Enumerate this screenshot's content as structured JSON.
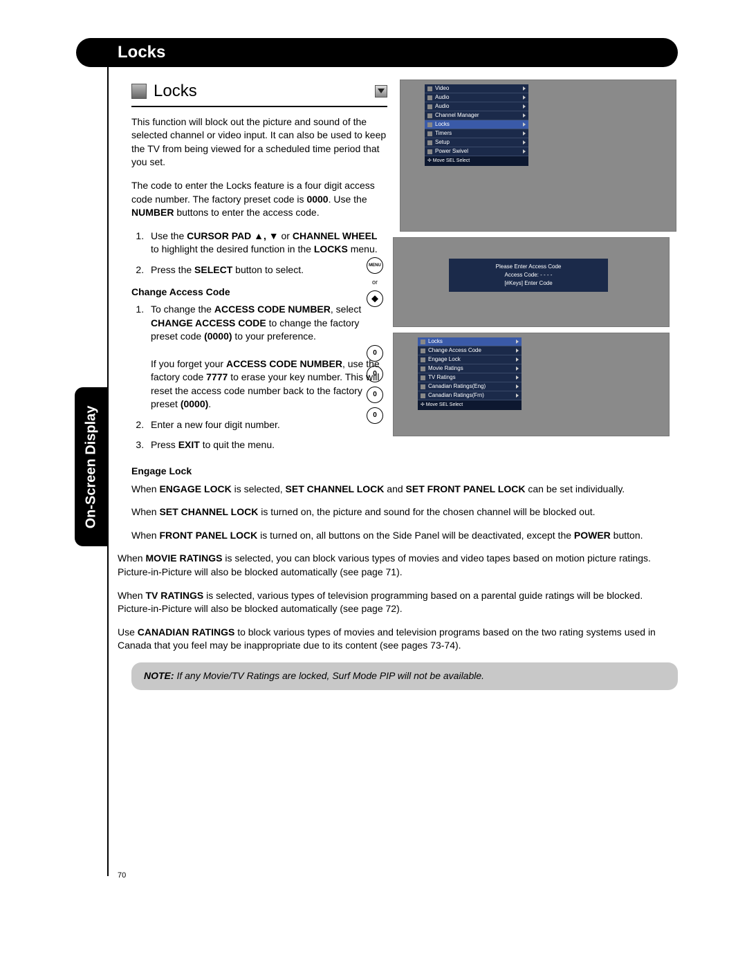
{
  "header": {
    "title": "Locks"
  },
  "sideTab": "On-Screen Display",
  "subheader": "Locks",
  "intro1": "This function will block out the picture and sound of the selected channel or video input. It can also be used to keep the TV from being viewed for a scheduled time period that you set.",
  "intro2a": "The code to enter the Locks feature is a four digit access code number. The factory preset code is ",
  "intro2b": "0000",
  "intro2c": ". Use the ",
  "intro2d": "NUMBER",
  "intro2e": " buttons to enter the access code.",
  "step1a": "Use the ",
  "step1b": "CURSOR PAD ▲, ▼",
  "step1c": " or ",
  "step1d": "CHANNEL WHEEL",
  "step1e": " to highlight the desired function in the ",
  "step1f": "LOCKS",
  "step1g": " menu.",
  "step2a": "Press the ",
  "step2b": "SELECT",
  "step2c": " button to select.",
  "changeHead": "Change Access Code",
  "c1a": "To change the ",
  "c1b": "ACCESS CODE NUMBER",
  "c1c": ", select ",
  "c1d": "CHANGE ACCESS CODE",
  "c1e": " to change the factory preset code ",
  "c1f": "(0000)",
  "c1g": " to your preference.",
  "c1p2a": "If you forget your ",
  "c1p2b": "ACCESS CODE NUMBER",
  "c1p2c": ", use the factory code ",
  "c1p2d": "7777",
  "c1p2e": " to erase your key number. This will reset the access code number back to the factory preset ",
  "c1p2f": "(0000)",
  "c1p2g": ".",
  "c2": "Enter a new four digit number.",
  "c3a": "Press ",
  "c3b": "EXIT",
  "c3c": " to quit the menu.",
  "engageHead": "Engage Lock",
  "e1a": "When ",
  "e1b": "ENGAGE LOCK",
  "e1c": " is selected, ",
  "e1d": "SET CHANNEL LOCK",
  "e1e": " and ",
  "e1f": "SET FRONT PANEL LOCK",
  "e1g": " can be set individually.",
  "e2a": "When ",
  "e2b": "SET CHANNEL LOCK",
  "e2c": " is turned on, the picture and sound for the chosen channel will be blocked out.",
  "e3a": "When ",
  "e3b": "FRONT PANEL LOCK",
  "e3c": " is turned on, all buttons on the Side Panel will be deactivated, except the ",
  "e3d": "POWER",
  "e3e": " button.",
  "f1a": "When ",
  "f1b": "MOVIE RATINGS",
  "f1c": " is selected, you can block various types of movies and video tapes based on motion picture ratings. Picture-in-Picture will also be blocked automatically (see page 71).",
  "f2a": "When ",
  "f2b": "TV RATINGS",
  "f2c": " is selected, various types of television programming based on a parental guide ratings will be blocked. Picture-in-Picture will also be blocked automatically (see page 72).",
  "f3a": "Use ",
  "f3b": "CANADIAN RATINGS",
  "f3c": " to block various types of movies and television programs based on the two rating systems used in Canada that you feel may be inappropriate due to its content (see pages 73-74).",
  "noteLabel": "NOTE:",
  "noteText": "  If any Movie/TV Ratings are locked, Surf Mode PIP will not be available.",
  "pageNum": "70",
  "menu1": [
    "Video",
    "Audio",
    "Audio",
    "Channel Manager",
    "Locks",
    "Timers",
    "Setup",
    "Power Swivel"
  ],
  "menu1Sel": 4,
  "menu2": [
    "Locks",
    "Change Access Code",
    "Engage Lock",
    "Movie Ratings",
    "TV Ratings",
    "Canadian Ratings(Eng)",
    "Canadian Ratings(Frn)"
  ],
  "hint": "✢ Move    SEL Select",
  "code1": "Please Enter Access Code",
  "code2": "Access Code:   - - - -",
  "code3": "[#Keys] Enter Code",
  "zero": "0",
  "or": "or",
  "menuBtn": "MENU"
}
